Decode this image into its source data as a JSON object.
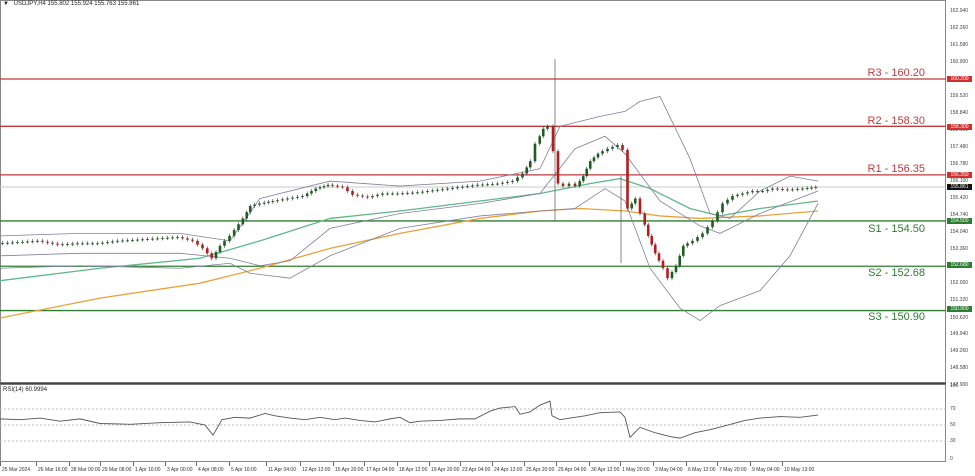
{
  "header": {
    "symbol_timeframe": "USDJPY,H4",
    "ohlc": "155.802 155.924 155.763 155.861"
  },
  "rsi": {
    "title": "RSI(14) 60.9994",
    "levels": [
      "100",
      "70",
      "50",
      "30",
      "0"
    ]
  },
  "levels": {
    "R3": {
      "label": "R3 - 160.20",
      "tag": "160.200",
      "price": 160.2,
      "color": "#c0393b"
    },
    "R2": {
      "label": "R2 - 158.30",
      "tag": "158.300",
      "price": 158.3,
      "color": "#c0393b"
    },
    "R1": {
      "label": "R1 - 156.35",
      "tag": "156.350",
      "price": 156.35,
      "color": "#c0393b"
    },
    "S1": {
      "label": "S1 - 154.50",
      "tag": "154.500",
      "price": 154.5,
      "color": "#2e7d32"
    },
    "S2": {
      "label": "S2 - 152.68",
      "tag": "152.680",
      "price": 152.68,
      "color": "#2e7d32"
    },
    "S3": {
      "label": "S3 - 150.90",
      "tag": "150.900",
      "price": 150.9,
      "color": "#2e7d32"
    }
  },
  "current_price": {
    "tag": "155.861",
    "price": 155.861
  },
  "price_axis": [
    "162.940",
    "162.260",
    "161.580",
    "160.900",
    "159.520",
    "158.840",
    "158.160",
    "157.480",
    "156.780",
    "156.100",
    "155.420",
    "154.740",
    "154.040",
    "153.360",
    "152.000",
    "151.320",
    "150.620",
    "149.940",
    "149.260",
    "148.580",
    "147.900"
  ],
  "time_axis": [
    "25 Mar 2024",
    "26 Mar 16:00",
    "28 Mar 00:00",
    "29 Mar 08:00",
    "1 Apr 16:00",
    "3 Apr 00:00",
    "4 Apr 08:00",
    "5 Apr 16:00",
    "11 Apr 04:00",
    "12 Apr 12:00",
    "15 Apr 20:00",
    "17 Apr 04:00",
    "18 Apr 12:00",
    "19 Apr 20:00",
    "23 Apr 04:00",
    "24 Apr 12:00",
    "25 Apr 20:00",
    "29 Apr 04:00",
    "30 Apr 12:00",
    "1 May 20:00",
    "3 May 04:00",
    "6 May 12:00",
    "7 May 20:00",
    "9 May 04:00",
    "10 May 13:00"
  ],
  "colors": {
    "bull": "#1b5e20",
    "bear": "#b71c1c",
    "bollinger": "#7f7fa0",
    "ma_fast": "#5fb88a",
    "ma_slow": "#e8a33a",
    "resistance": "#c0393b",
    "support": "#2e7d32"
  }
}
